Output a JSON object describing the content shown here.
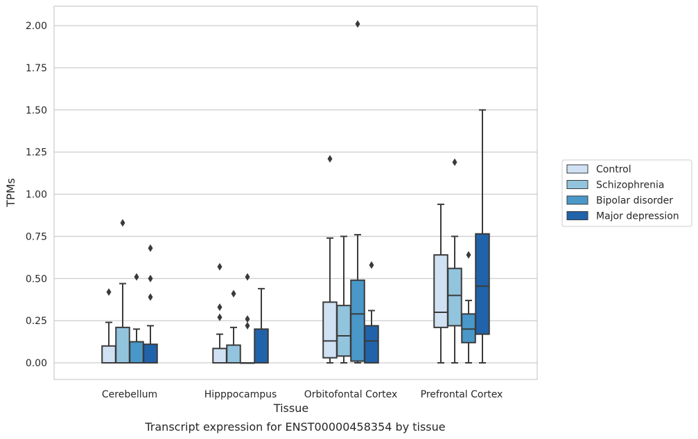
{
  "chart_data": {
    "type": "box",
    "caption": "Transcript expression for ENST00000458354 by tissue",
    "xlabel": "Tissue",
    "ylabel": "TPMs",
    "ylim": [
      -0.1,
      2.1
    ],
    "yticks": [
      "0.00",
      "0.25",
      "0.50",
      "0.75",
      "1.00",
      "1.25",
      "1.50",
      "1.75",
      "2.00"
    ],
    "grid": true,
    "legend_position": "right",
    "categories": [
      "Cerebellum",
      "Hipppocampus",
      "Orbitofontal Cortex",
      "Prefrontal Cortex"
    ],
    "series": [
      {
        "name": "Control",
        "color": "#cfe1f2",
        "boxes": [
          {
            "min": 0.0,
            "q1": 0.0,
            "median": 0.0,
            "q3": 0.1,
            "max": 0.24,
            "outliers": [
              0.42
            ]
          },
          {
            "min": 0.0,
            "q1": 0.0,
            "median": 0.0,
            "q3": 0.085,
            "max": 0.17,
            "outliers": [
              0.27,
              0.33,
              0.57
            ]
          },
          {
            "min": 0.0,
            "q1": 0.03,
            "median": 0.13,
            "q3": 0.36,
            "max": 0.74,
            "outliers": [
              1.21
            ]
          },
          {
            "min": 0.0,
            "q1": 0.21,
            "median": 0.3,
            "q3": 0.64,
            "max": 0.94,
            "outliers": []
          }
        ]
      },
      {
        "name": "Schizophrenia",
        "color": "#93c4de",
        "boxes": [
          {
            "min": 0.0,
            "q1": 0.0,
            "median": 0.0,
            "q3": 0.21,
            "max": 0.47,
            "outliers": [
              0.83
            ]
          },
          {
            "min": 0.0,
            "q1": 0.0,
            "median": 0.0,
            "q3": 0.105,
            "max": 0.21,
            "outliers": [
              0.41
            ]
          },
          {
            "min": 0.0,
            "q1": 0.04,
            "median": 0.16,
            "q3": 0.34,
            "max": 0.75,
            "outliers": []
          },
          {
            "min": 0.0,
            "q1": 0.22,
            "median": 0.4,
            "q3": 0.56,
            "max": 0.75,
            "outliers": [
              1.19
            ]
          }
        ]
      },
      {
        "name": "Bipolar disorder",
        "color": "#4a98c9",
        "boxes": [
          {
            "min": 0.0,
            "q1": 0.0,
            "median": 0.0,
            "q3": 0.125,
            "max": 0.2,
            "outliers": [
              0.51
            ]
          },
          {
            "min": 0.0,
            "q1": 0.0,
            "median": 0.0,
            "q3": 0.0,
            "max": 0.0,
            "outliers": [
              0.22,
              0.26,
              0.51
            ]
          },
          {
            "min": 0.0,
            "q1": 0.01,
            "median": 0.29,
            "q3": 0.49,
            "max": 0.76,
            "outliers": [
              2.01
            ]
          },
          {
            "min": 0.0,
            "q1": 0.12,
            "median": 0.2,
            "q3": 0.29,
            "max": 0.37,
            "outliers": [
              0.64
            ]
          }
        ]
      },
      {
        "name": "Major depression",
        "color": "#2163aa",
        "boxes": [
          {
            "min": 0.0,
            "q1": 0.0,
            "median": 0.0,
            "q3": 0.11,
            "max": 0.22,
            "outliers": [
              0.39,
              0.5,
              0.68
            ]
          },
          {
            "min": 0.0,
            "q1": 0.0,
            "median": 0.0,
            "q3": 0.2,
            "max": 0.44,
            "outliers": []
          },
          {
            "min": 0.0,
            "q1": 0.0,
            "median": 0.13,
            "q3": 0.22,
            "max": 0.31,
            "outliers": [
              0.58
            ]
          },
          {
            "min": 0.0,
            "q1": 0.17,
            "median": 0.455,
            "q3": 0.765,
            "max": 1.5,
            "outliers": []
          }
        ]
      }
    ]
  }
}
